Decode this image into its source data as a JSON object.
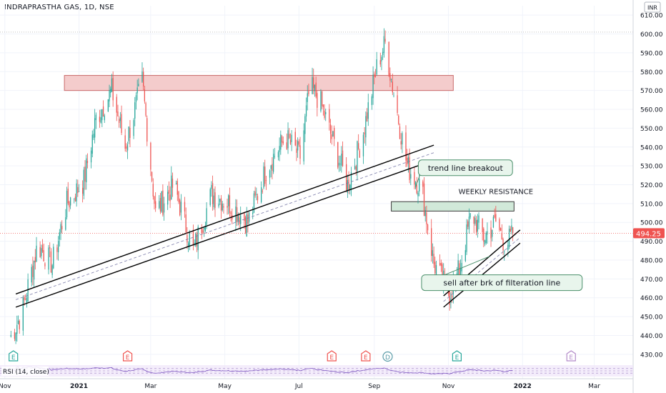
{
  "header": {
    "title": "INDRAPRASTHA GAS, 1D, NSE",
    "currency": "INR"
  },
  "chart_data": {
    "type": "candlestick",
    "ylim": [
      425,
      615
    ],
    "yticks": [
      430,
      440,
      450,
      460,
      470,
      480,
      490,
      500,
      510,
      520,
      530,
      540,
      550,
      560,
      570,
      580,
      590,
      600,
      610
    ],
    "x_tick_labels": [
      {
        "label": "Nov",
        "date": "2020-11-01"
      },
      {
        "label": "2021",
        "date": "2021-01-01"
      },
      {
        "label": "Mar",
        "date": "2021-03-01"
      },
      {
        "label": "May",
        "date": "2021-05-01"
      },
      {
        "label": "Jul",
        "date": "2021-07-01"
      },
      {
        "label": "Sep",
        "date": "2021-09-01"
      },
      {
        "label": "Nov",
        "date": "2021-11-01"
      },
      {
        "label": "2022",
        "date": "2022-01-01"
      },
      {
        "label": "Mar",
        "date": "2022-03-01"
      }
    ],
    "last_price": {
      "label": "494.25",
      "value": 494.25
    },
    "high_line": 601,
    "closes_anchors": [
      {
        "date": "2020-11-05",
        "value": 438
      },
      {
        "date": "2020-11-15",
        "value": 452
      },
      {
        "date": "2020-11-28",
        "value": 488
      },
      {
        "date": "2020-12-10",
        "value": 478
      },
      {
        "date": "2020-12-22",
        "value": 510
      },
      {
        "date": "2021-01-05",
        "value": 522
      },
      {
        "date": "2021-01-15",
        "value": 555
      },
      {
        "date": "2021-01-28",
        "value": 570
      },
      {
        "date": "2021-02-08",
        "value": 540
      },
      {
        "date": "2021-02-22",
        "value": 575
      },
      {
        "date": "2021-03-05",
        "value": 505
      },
      {
        "date": "2021-03-20",
        "value": 520
      },
      {
        "date": "2021-04-05",
        "value": 485
      },
      {
        "date": "2021-04-20",
        "value": 515
      },
      {
        "date": "2021-05-05",
        "value": 510
      },
      {
        "date": "2021-05-20",
        "value": 500
      },
      {
        "date": "2021-06-05",
        "value": 530
      },
      {
        "date": "2021-06-20",
        "value": 545
      },
      {
        "date": "2021-07-02",
        "value": 535
      },
      {
        "date": "2021-07-10",
        "value": 572
      },
      {
        "date": "2021-07-18",
        "value": 565
      },
      {
        "date": "2021-07-28",
        "value": 545
      },
      {
        "date": "2021-08-10",
        "value": 520
      },
      {
        "date": "2021-08-22",
        "value": 545
      },
      {
        "date": "2021-09-04",
        "value": 585
      },
      {
        "date": "2021-09-10",
        "value": 595
      },
      {
        "date": "2021-09-18",
        "value": 565
      },
      {
        "date": "2021-09-28",
        "value": 530
      },
      {
        "date": "2021-10-10",
        "value": 518
      },
      {
        "date": "2021-10-20",
        "value": 478
      },
      {
        "date": "2021-11-02",
        "value": 462
      },
      {
        "date": "2021-11-10",
        "value": 475
      },
      {
        "date": "2021-11-20",
        "value": 505
      },
      {
        "date": "2021-11-30",
        "value": 492
      },
      {
        "date": "2021-12-10",
        "value": 500
      },
      {
        "date": "2021-12-18",
        "value": 488
      },
      {
        "date": "2021-12-25",
        "value": 494.25
      }
    ],
    "zones": [
      {
        "from": "2020-12-20",
        "to": "2021-11-05",
        "low": 570,
        "high": 578,
        "fill": "#f4cccc",
        "stroke": "#c96a6a"
      },
      {
        "from": "2021-09-15",
        "to": "2021-12-25",
        "low": 506,
        "high": 511,
        "fill": "#d1e9d9",
        "stroke": "#3a3a3a"
      }
    ],
    "trendlines": [
      {
        "p1": {
          "date": "2020-11-10",
          "value": 462
        },
        "p2": {
          "date": "2021-10-20",
          "value": 541
        },
        "color": "#000000",
        "dash": false
      },
      {
        "p1": {
          "date": "2020-11-10",
          "value": 455
        },
        "p2": {
          "date": "2021-10-20",
          "value": 533
        },
        "color": "#000000",
        "dash": false
      },
      {
        "p1": {
          "date": "2020-11-10",
          "value": 459
        },
        "p2": {
          "date": "2021-10-20",
          "value": 537
        },
        "color": "#7a7aa8",
        "dash": true
      },
      {
        "p1": {
          "date": "2021-10-28",
          "value": 461
        },
        "p2": {
          "date": "2021-12-30",
          "value": 496
        },
        "color": "#000000",
        "dash": false
      },
      {
        "p1": {
          "date": "2021-10-28",
          "value": 455
        },
        "p2": {
          "date": "2021-12-30",
          "value": 489
        },
        "color": "#000000",
        "dash": false
      },
      {
        "p1": {
          "date": "2021-10-28",
          "value": 458
        },
        "p2": {
          "date": "2021-12-30",
          "value": 492
        },
        "color": "#7a7aa8",
        "dash": true
      }
    ],
    "annotations": [
      {
        "text": "trend line breakout",
        "type": "callout",
        "box_date": "2021-11-15",
        "box_value": 529,
        "target_date": "2021-10-05",
        "target_value": 519
      },
      {
        "text": "WEEKLY RESISTANCE",
        "type": "text",
        "date": "2021-12-10",
        "value": 515
      },
      {
        "text": "sell after brk of filteration line",
        "type": "callout",
        "box_date": "2021-12-15",
        "box_value": 468,
        "target_date": "2021-12-05",
        "target_value": 482
      }
    ],
    "event_markers": [
      {
        "label": "E",
        "date": "2020-11-08",
        "color": "#26a69a"
      },
      {
        "label": "E",
        "date": "2021-02-10",
        "color": "#ef5350"
      },
      {
        "label": "E",
        "date": "2021-07-28",
        "color": "#ef5350"
      },
      {
        "label": "E",
        "date": "2021-08-25",
        "color": "#ef5350"
      },
      {
        "label": "D",
        "date": "2021-09-12",
        "color": "#5b9ca8"
      },
      {
        "label": "E",
        "date": "2021-11-08",
        "color": "#26a69a"
      },
      {
        "label": "E",
        "date": "2022-02-10",
        "color": "#b38bc9"
      }
    ],
    "rsi": {
      "label": "RSI (14, close)",
      "levels": [
        70,
        50,
        30
      ]
    },
    "colors": {
      "up": "#26a69a",
      "down": "#ef5350",
      "grid": "#f0f3fa",
      "axis_text": "#131722",
      "price_tag": "#ef5350"
    },
    "grid": true,
    "x_range": [
      "2020-10-28",
      "2022-04-02"
    ]
  }
}
